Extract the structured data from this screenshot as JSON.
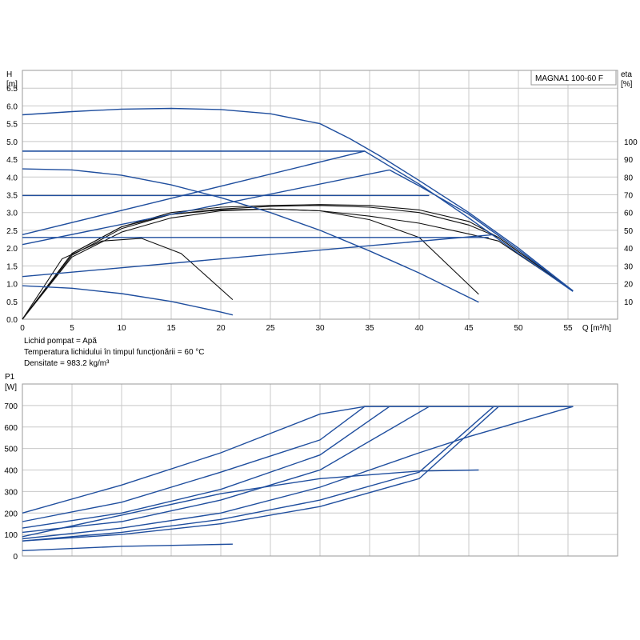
{
  "model": "MAGNA1 100-60 F",
  "notes": [
    "Lichid pompat = Apă",
    "Temperatura lichidului în timpul funcționării = 60 °C",
    "Densitate = 983.2 kg/m³"
  ],
  "chart_data": [
    {
      "type": "line",
      "name": "head",
      "ylabel_lines": [
        "H",
        "[m]"
      ],
      "y2label_lines": [
        "eta",
        "[%]"
      ],
      "xlabel": "Q [m³/h]",
      "xlim": [
        0,
        60
      ],
      "ylim": [
        0,
        7.0
      ],
      "y2lim": [
        0,
        140
      ],
      "grid": true,
      "x_ticks": [
        0,
        5,
        10,
        15,
        20,
        25,
        30,
        35,
        40,
        45,
        50,
        55
      ],
      "y_ticks": [
        "0.0",
        "0.5",
        "1.0",
        "1.5",
        "2.0",
        "2.5",
        "3.0",
        "3.5",
        "4.0",
        "4.5",
        "5.0",
        "5.5",
        "6.0",
        "6.5"
      ],
      "y2_ticks": [
        "10",
        "20",
        "30",
        "40",
        "50",
        "60",
        "70",
        "80",
        "90",
        "100"
      ],
      "head_curves": [
        {
          "x": [
            0,
            5,
            10,
            15,
            20,
            25,
            30,
            33,
            36,
            40,
            45,
            50,
            55.5
          ],
          "y": [
            5.75,
            5.84,
            5.91,
            5.93,
            5.9,
            5.78,
            5.5,
            5.08,
            4.6,
            3.9,
            3.0,
            2.0,
            0.8
          ]
        },
        {
          "x": [
            0,
            5,
            10,
            15,
            20,
            25,
            30,
            35,
            40,
            46
          ],
          "y": [
            4.23,
            4.2,
            4.05,
            3.78,
            3.42,
            3.0,
            2.5,
            1.92,
            1.3,
            0.48
          ]
        },
        {
          "x": [
            0,
            5,
            10,
            15,
            20,
            21.2
          ],
          "y": [
            0.94,
            0.87,
            0.72,
            0.5,
            0.2,
            0.12
          ]
        },
        {
          "x": [
            0,
            34.5
          ],
          "y": [
            4.73,
            4.73
          ]
        },
        {
          "x": [
            0,
            41
          ],
          "y": [
            3.48,
            3.48
          ]
        },
        {
          "x": [
            0,
            47
          ],
          "y": [
            2.3,
            2.3
          ]
        },
        {
          "x": [
            0,
            34.5
          ],
          "y": [
            2.38,
            4.73
          ]
        },
        {
          "x": [
            0,
            37
          ],
          "y": [
            2.1,
            4.2
          ]
        },
        {
          "x": [
            0,
            47.5
          ],
          "y": [
            1.2,
            2.38
          ]
        }
      ],
      "control_curves": [
        {
          "x": [
            0,
            34.5,
            40,
            45,
            50,
            55.5
          ],
          "y": [
            4.73,
            4.73,
            3.8,
            2.85,
            1.85,
            0.78
          ]
        },
        {
          "x": [
            37,
            40,
            45,
            50,
            55.5
          ],
          "y": [
            4.2,
            3.75,
            2.95,
            1.95,
            0.8
          ]
        }
      ],
      "efficiency_curves": [
        {
          "x": [
            0,
            4,
            8,
            12,
            16,
            21.2
          ],
          "x_end": 21.2,
          "eta": [
            0,
            34,
            44,
            45.5,
            37,
            11
          ]
        },
        {
          "x": [
            0,
            5,
            10,
            15,
            20,
            25,
            30,
            35,
            40,
            46
          ],
          "eta": [
            0,
            35,
            49,
            57,
            61,
            62,
            61,
            56,
            46,
            14
          ]
        },
        {
          "x": [
            0,
            5,
            10,
            15,
            20,
            25,
            30,
            35,
            40,
            45,
            48,
            55.5
          ],
          "eta": [
            0,
            36,
            51,
            59,
            62,
            63.5,
            64,
            63,
            60,
            53,
            46,
            16
          ]
        },
        {
          "x": [
            0,
            5,
            10,
            15,
            20,
            25,
            30,
            35,
            40,
            45,
            48,
            55.5
          ],
          "eta": [
            0,
            37,
            52,
            60,
            63,
            64,
            64.5,
            64,
            61.5,
            55,
            46,
            16
          ]
        },
        {
          "x": [
            0,
            5,
            10,
            15,
            20,
            25,
            30,
            35,
            40,
            45,
            48,
            55.5
          ],
          "eta": [
            0,
            37,
            52,
            59,
            61.5,
            62,
            61,
            58,
            54,
            48,
            44,
            16
          ]
        }
      ]
    },
    {
      "type": "line",
      "name": "power",
      "ylabel_lines": [
        "P1",
        "[W]"
      ],
      "xlim": [
        0,
        60
      ],
      "ylim": [
        0,
        800
      ],
      "grid": true,
      "y_ticks": [
        "0",
        "100",
        "200",
        "300",
        "400",
        "500",
        "600",
        "700"
      ],
      "power_curves": [
        {
          "x": [
            0,
            10,
            20,
            30,
            34.5,
            55.5
          ],
          "y": [
            200,
            330,
            480,
            660,
            695,
            695
          ]
        },
        {
          "x": [
            0,
            10,
            20,
            30,
            34.5,
            55.5
          ],
          "y": [
            160,
            250,
            390,
            540,
            695,
            695
          ]
        },
        {
          "x": [
            0,
            10,
            20,
            30,
            37,
            55.5
          ],
          "y": [
            130,
            200,
            310,
            470,
            695,
            695
          ]
        },
        {
          "x": [
            0,
            10,
            20,
            30,
            41,
            55.5
          ],
          "y": [
            110,
            160,
            260,
            400,
            695,
            695
          ]
        },
        {
          "x": [
            0,
            10,
            20,
            30,
            40,
            45,
            55.5
          ],
          "y": [
            80,
            130,
            200,
            320,
            480,
            555,
            695
          ]
        },
        {
          "x": [
            0,
            10,
            20,
            30,
            40,
            47.5,
            55.5
          ],
          "y": [
            70,
            110,
            170,
            260,
            390,
            695,
            695
          ]
        },
        {
          "x": [
            0,
            10,
            20,
            30,
            40,
            48,
            55.5
          ],
          "y": [
            70,
            100,
            150,
            230,
            360,
            695,
            695
          ]
        },
        {
          "x": [
            0,
            10,
            20,
            30,
            40,
            46
          ],
          "y": [
            90,
            190,
            290,
            360,
            395,
            400
          ]
        },
        {
          "x": [
            0,
            10,
            20,
            21.2
          ],
          "y": [
            25,
            45,
            54,
            55
          ]
        }
      ]
    }
  ]
}
